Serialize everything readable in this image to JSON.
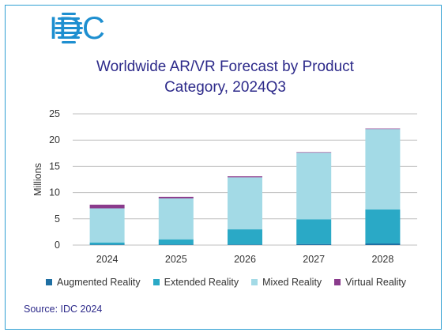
{
  "logo": {
    "text": "IDC",
    "color": "#1e8fd0"
  },
  "colors": {
    "augmented": "#1f6fa3",
    "extended": "#2aa9c6",
    "mixed": "#a3dae6",
    "virtual": "#8a3b8c",
    "title": "#2d2a8a",
    "axis": "#bfbfbf",
    "border": "#2f9fd2"
  },
  "source": "Source: IDC 2024",
  "chart_data": {
    "type": "bar",
    "stacked": true,
    "title": "Worldwide AR/VR Forecast by Product Category, 2024Q3",
    "title_lines": [
      "Worldwide AR/VR Forecast by Product",
      "Category, 2024Q3"
    ],
    "xlabel": "",
    "ylabel": "Millions",
    "ylim": [
      0,
      25
    ],
    "yticks": [
      0,
      5,
      10,
      15,
      20,
      25
    ],
    "grid": true,
    "legend": "bottom",
    "categories": [
      "2024",
      "2025",
      "2026",
      "2027",
      "2028"
    ],
    "series": [
      {
        "name": "Augmented Reality",
        "color": "#1f6fa3",
        "values": [
          0.1,
          0.1,
          0.1,
          0.2,
          0.3
        ]
      },
      {
        "name": "Extended Reality",
        "color": "#2aa9c6",
        "values": [
          0.4,
          1.0,
          2.9,
          4.7,
          6.5
        ]
      },
      {
        "name": "Mixed Reality",
        "color": "#a3dae6",
        "values": [
          6.5,
          7.8,
          9.9,
          12.7,
          15.3
        ]
      },
      {
        "name": "Virtual Reality",
        "color": "#8a3b8c",
        "values": [
          0.7,
          0.3,
          0.2,
          0.1,
          0.1
        ]
      }
    ]
  }
}
